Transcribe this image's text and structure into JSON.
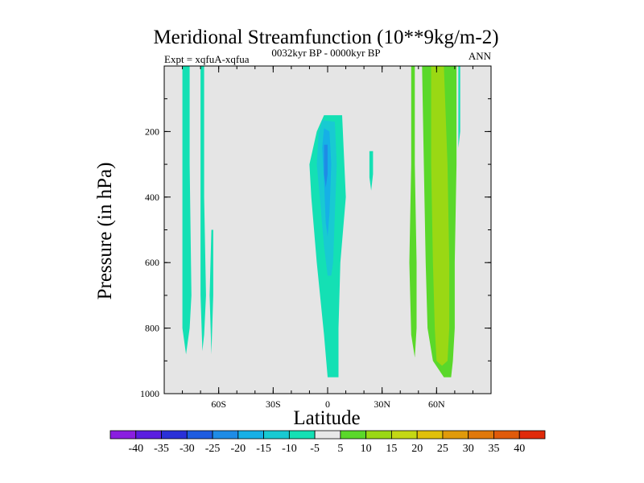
{
  "chart_data": {
    "type": "contour",
    "title": "Meridional Streamfunction (10**9kg/m-2)",
    "left_label": "Expt = xqfuA-xqfua",
    "center_label": "0032kyr BP - 0000kyr BP",
    "right_label": "ANN",
    "xlabel": "Latitude",
    "ylabel": "Pressure (in hPa)",
    "xlim": [
      -90,
      90
    ],
    "ylim": [
      1000,
      0
    ],
    "y_reversed": true,
    "background_color": "#e5e5e5",
    "x_ticks": [
      {
        "value": -60,
        "label": "60S"
      },
      {
        "value": -30,
        "label": "30S"
      },
      {
        "value": 0,
        "label": "0"
      },
      {
        "value": 30,
        "label": "30N"
      },
      {
        "value": 60,
        "label": "60N"
      }
    ],
    "y_ticks": [
      {
        "value": 200,
        "label": "200"
      },
      {
        "value": 400,
        "label": "400"
      },
      {
        "value": 600,
        "label": "600"
      },
      {
        "value": 800,
        "label": "800"
      },
      {
        "value": 1000,
        "label": "1000"
      }
    ],
    "colorbar": {
      "labels": [
        "-40",
        "-35",
        "-30",
        "-25",
        "-20",
        "-15",
        "-10",
        "-5",
        "5",
        "10",
        "15",
        "20",
        "25",
        "30",
        "35",
        "40"
      ],
      "colors": [
        "#8a1ee0",
        "#5a1ee0",
        "#2a30d8",
        "#1e5ce0",
        "#1e8ce6",
        "#16b0e6",
        "#18cad2",
        "#14e0b4",
        "#e8e8e8",
        "#5ad82a",
        "#9ad814",
        "#c4d814",
        "#e0c00a",
        "#e09a0a",
        "#e0780a",
        "#e05a0a",
        "#e02a0a"
      ]
    },
    "regions": [
      {
        "name": "antarctic-neg-cell-a",
        "color": "#14e0b4",
        "points": [
          [
            -80,
            0
          ],
          [
            -76,
            0
          ],
          [
            -76,
            300
          ],
          [
            -75,
            700
          ],
          [
            -76,
            800
          ],
          [
            -78,
            880
          ],
          [
            -80,
            800
          ],
          [
            -80,
            400
          ]
        ]
      },
      {
        "name": "antarctic-neg-cell-b",
        "color": "#14e0b4",
        "points": [
          [
            -70,
            0
          ],
          [
            -68,
            0
          ],
          [
            -68,
            400
          ],
          [
            -67,
            700
          ],
          [
            -68,
            820
          ],
          [
            -69,
            870
          ],
          [
            -70,
            700
          ],
          [
            -70,
            300
          ]
        ]
      },
      {
        "name": "antarctic-neg-cell-c",
        "color": "#14e0b4",
        "points": [
          [
            -64,
            500
          ],
          [
            -63,
            500
          ],
          [
            -63,
            700
          ],
          [
            -64,
            880
          ],
          [
            -65,
            700
          ]
        ]
      },
      {
        "name": "tropical-neg-cell-outer",
        "color": "#14e0b4",
        "points": [
          [
            -2,
            150
          ],
          [
            8,
            150
          ],
          [
            10,
            400
          ],
          [
            7,
            600
          ],
          [
            6,
            800
          ],
          [
            6,
            950
          ],
          [
            0,
            950
          ],
          [
            -2,
            820
          ],
          [
            -6,
            600
          ],
          [
            -9,
            400
          ],
          [
            -10,
            300
          ],
          [
            -6,
            200
          ]
        ]
      },
      {
        "name": "tropical-neg-cell-mid",
        "color": "#18cad2",
        "points": [
          [
            -3,
            165
          ],
          [
            4,
            170
          ],
          [
            5,
            300
          ],
          [
            4,
            450
          ],
          [
            3,
            600
          ],
          [
            2,
            640
          ],
          [
            0,
            640
          ],
          [
            -2,
            550
          ],
          [
            -4,
            420
          ],
          [
            -6,
            300
          ],
          [
            -5,
            210
          ]
        ]
      },
      {
        "name": "tropical-neg-cell-inner",
        "color": "#16b0e6",
        "points": [
          [
            -2,
            190
          ],
          [
            1,
            200
          ],
          [
            2,
            300
          ],
          [
            1,
            450
          ],
          [
            0,
            520
          ],
          [
            -1,
            480
          ],
          [
            -2,
            350
          ],
          [
            -3,
            250
          ]
        ]
      },
      {
        "name": "tropical-neg-cell-core",
        "color": "#1e8ce6",
        "points": [
          [
            -2,
            240
          ],
          [
            0,
            240
          ],
          [
            0,
            330
          ],
          [
            -1,
            370
          ],
          [
            -2,
            330
          ]
        ]
      },
      {
        "name": "small-neg-cell-25n",
        "color": "#14e0b4",
        "points": [
          [
            23,
            260
          ],
          [
            25,
            260
          ],
          [
            25,
            330
          ],
          [
            24,
            380
          ],
          [
            23,
            340
          ]
        ]
      },
      {
        "name": "nh-pos-cell-a",
        "color": "#5ad82a",
        "points": [
          [
            46,
            0
          ],
          [
            48,
            0
          ],
          [
            48,
            300
          ],
          [
            49,
            600
          ],
          [
            49,
            800
          ],
          [
            48,
            890
          ],
          [
            46,
            820
          ],
          [
            45,
            600
          ],
          [
            46,
            300
          ]
        ]
      },
      {
        "name": "nh-pos-cell-b",
        "color": "#5ad82a",
        "points": [
          [
            52,
            0
          ],
          [
            71,
            0
          ],
          [
            71,
            300
          ],
          [
            70,
            600
          ],
          [
            70,
            800
          ],
          [
            69,
            900
          ],
          [
            68,
            950
          ],
          [
            64,
            950
          ],
          [
            58,
            900
          ],
          [
            55,
            800
          ],
          [
            54,
            600
          ],
          [
            53,
            300
          ]
        ]
      },
      {
        "name": "nh-pos-cell-c",
        "color": "#9ad814",
        "points": [
          [
            57,
            0
          ],
          [
            64,
            0
          ],
          [
            66,
            300
          ],
          [
            67,
            600
          ],
          [
            67,
            800
          ],
          [
            66,
            900
          ],
          [
            63,
            915
          ],
          [
            60,
            900
          ],
          [
            59,
            800
          ],
          [
            58,
            600
          ],
          [
            57,
            300
          ]
        ]
      },
      {
        "name": "nh-neg-sliver",
        "color": "#14e0b4",
        "points": [
          [
            72,
            0
          ],
          [
            73,
            0
          ],
          [
            73,
            200
          ],
          [
            72,
            250
          ]
        ]
      }
    ]
  }
}
